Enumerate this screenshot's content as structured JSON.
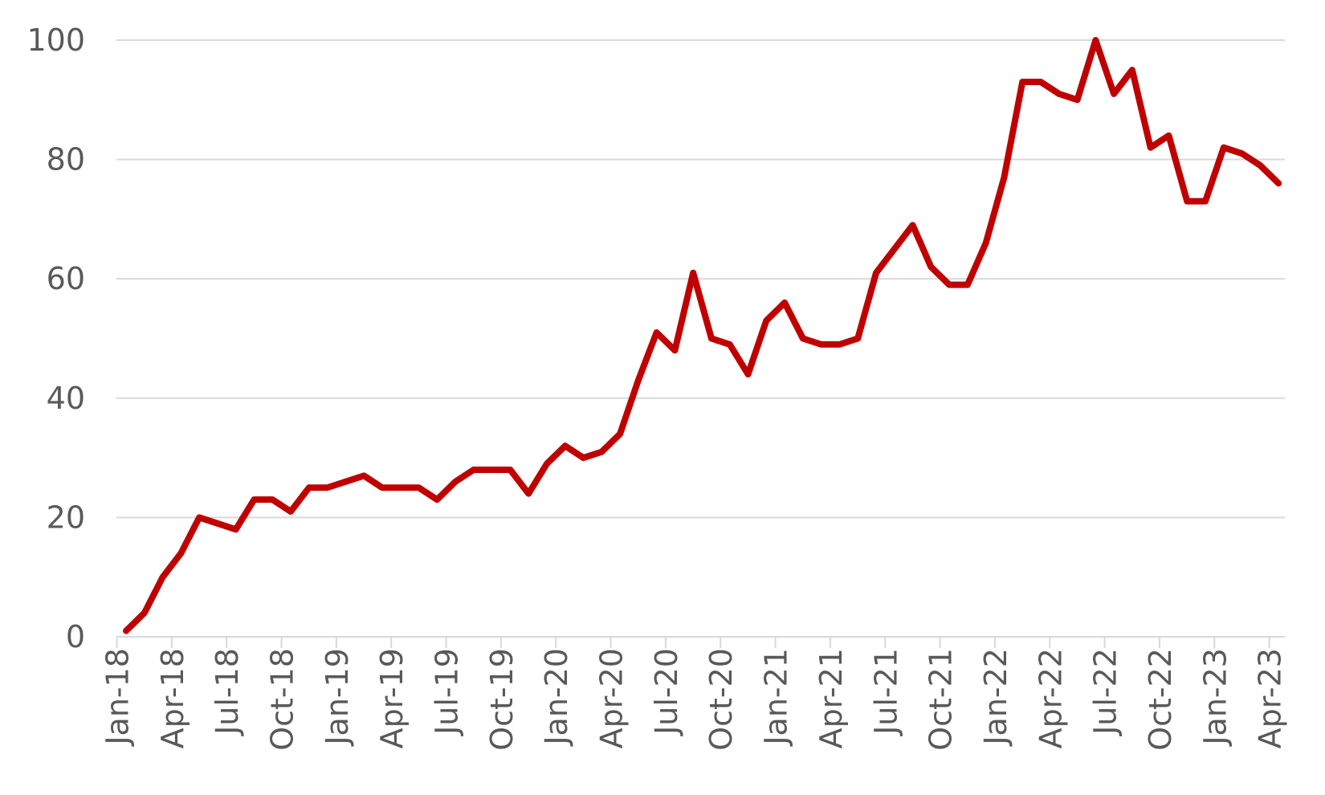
{
  "chart_data": {
    "type": "line",
    "title": "",
    "xlabel": "",
    "ylabel": "",
    "ylim": [
      0,
      100
    ],
    "yticks": [
      0,
      20,
      40,
      60,
      80,
      100
    ],
    "grid": true,
    "legend": "none",
    "x": [
      "Jan-18",
      "Feb-18",
      "Mar-18",
      "Apr-18",
      "May-18",
      "Jun-18",
      "Jul-18",
      "Aug-18",
      "Sep-18",
      "Oct-18",
      "Nov-18",
      "Dec-18",
      "Jan-19",
      "Feb-19",
      "Mar-19",
      "Apr-19",
      "May-19",
      "Jun-19",
      "Jul-19",
      "Aug-19",
      "Sep-19",
      "Oct-19",
      "Nov-19",
      "Dec-19",
      "Jan-20",
      "Feb-20",
      "Mar-20",
      "Apr-20",
      "May-20",
      "Jun-20",
      "Jul-20",
      "Aug-20",
      "Sep-20",
      "Oct-20",
      "Nov-20",
      "Dec-20",
      "Jan-21",
      "Feb-21",
      "Mar-21",
      "Apr-21",
      "May-21",
      "Jun-21",
      "Jul-21",
      "Aug-21",
      "Sep-21",
      "Oct-21",
      "Nov-21",
      "Dec-21",
      "Jan-22",
      "Feb-22",
      "Mar-22",
      "Apr-22",
      "May-22",
      "Jun-22",
      "Jul-22",
      "Aug-22",
      "Sep-22",
      "Oct-22",
      "Nov-22",
      "Dec-22",
      "Jan-23",
      "Feb-23",
      "Mar-23",
      "Apr-23"
    ],
    "xtick_labels": [
      "Jan-18",
      "Apr-18",
      "Jul-18",
      "Oct-18",
      "Jan-19",
      "Apr-19",
      "Jul-19",
      "Oct-19",
      "Jan-20",
      "Apr-20",
      "Jul-20",
      "Oct-20",
      "Jan-21",
      "Apr-21",
      "Jul-21",
      "Oct-21",
      "Jan-22",
      "Apr-22",
      "Jul-22",
      "Oct-22",
      "Jan-23",
      "Apr-23"
    ],
    "series": [
      {
        "name": "",
        "color": "#C00000",
        "values": [
          1,
          4,
          10,
          14,
          20,
          19,
          18,
          23,
          23,
          21,
          25,
          25,
          26,
          27,
          25,
          25,
          25,
          23,
          26,
          28,
          28,
          28,
          24,
          29,
          32,
          30,
          31,
          34,
          43,
          51,
          48,
          61,
          50,
          49,
          44,
          53,
          56,
          50,
          49,
          49,
          50,
          61,
          65,
          69,
          62,
          59,
          59,
          66,
          77,
          93,
          93,
          91,
          90,
          100,
          91,
          95,
          82,
          84,
          73,
          73,
          82,
          81,
          79,
          76
        ]
      }
    ]
  }
}
